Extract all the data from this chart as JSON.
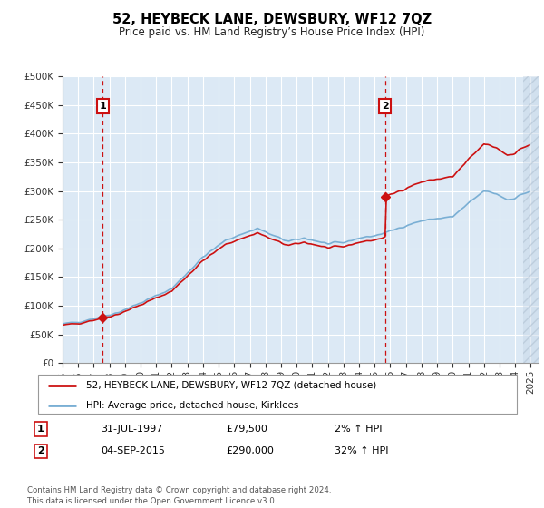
{
  "title": "52, HEYBECK LANE, DEWSBURY, WF12 7QZ",
  "subtitle": "Price paid vs. HM Land Registry’s House Price Index (HPI)",
  "ylim": [
    0,
    500000
  ],
  "yticks": [
    0,
    50000,
    100000,
    150000,
    200000,
    250000,
    300000,
    350000,
    400000,
    450000,
    500000
  ],
  "ytick_labels": [
    "£0",
    "£50K",
    "£100K",
    "£150K",
    "£200K",
    "£250K",
    "£300K",
    "£350K",
    "£400K",
    "£450K",
    "£500K"
  ],
  "bg_color": "#dce9f5",
  "grid_color": "#ffffff",
  "hpi_color": "#7aafd4",
  "price_color": "#cc1111",
  "sale1_year_f": 1997.58,
  "sale1_price": 79500,
  "sale2_year_f": 2015.67,
  "sale2_price": 290000,
  "legend_line1": "52, HEYBECK LANE, DEWSBURY, WF12 7QZ (detached house)",
  "legend_line2": "HPI: Average price, detached house, Kirklees",
  "annot1_num": "1",
  "annot1_date": "31-JUL-1997",
  "annot1_price": "£79,500",
  "annot1_hpi": "2% ↑ HPI",
  "annot2_num": "2",
  "annot2_date": "04-SEP-2015",
  "annot2_price": "£290,000",
  "annot2_hpi": "32% ↑ HPI",
  "footer": "Contains HM Land Registry data © Crown copyright and database right 2024.\nThis data is licensed under the Open Government Licence v3.0.",
  "xmin": 1995.0,
  "xmax": 2025.5,
  "hatch_start": 2024.5
}
